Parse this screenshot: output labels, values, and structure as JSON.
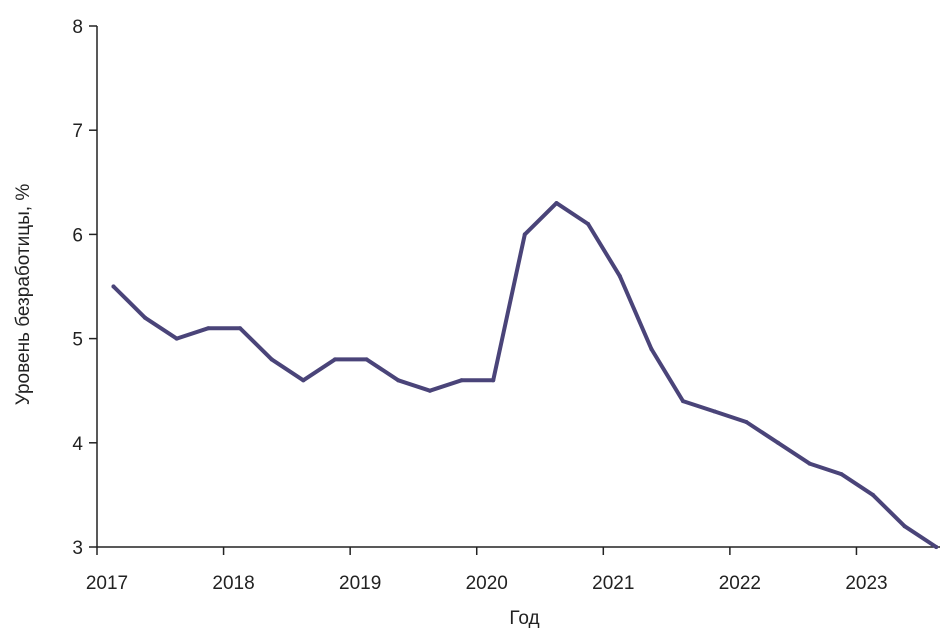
{
  "chart_data": {
    "type": "line",
    "title": "",
    "xlabel": "Год",
    "ylabel": "Уровень безработицы, %",
    "xlim": [
      2017,
      2023.66
    ],
    "ylim": [
      3,
      8
    ],
    "x_ticks": [
      2017,
      2018,
      2019,
      2020,
      2021,
      2022,
      2023
    ],
    "x_tick_labels": [
      "2017",
      "2018",
      "2019",
      "2020",
      "2021",
      "2022",
      "2023"
    ],
    "y_ticks": [
      3,
      4,
      5,
      6,
      7,
      8
    ],
    "y_tick_labels": [
      "3",
      "4",
      "5",
      "6",
      "7",
      "8"
    ],
    "grid": false,
    "legend": "none",
    "series": [
      {
        "color": "#4a4479",
        "x": [
          2017.13,
          2017.38,
          2017.63,
          2017.88,
          2018.13,
          2018.38,
          2018.63,
          2018.88,
          2019.13,
          2019.38,
          2019.63,
          2019.88,
          2020.13,
          2020.38,
          2020.63,
          2020.88,
          2021.13,
          2021.38,
          2021.63,
          2021.88,
          2022.13,
          2022.38,
          2022.63,
          2022.88,
          2023.13,
          2023.38,
          2023.63
        ],
        "y": [
          5.5,
          5.2,
          5.0,
          5.1,
          5.1,
          4.8,
          4.6,
          4.8,
          4.8,
          4.6,
          4.5,
          4.6,
          4.6,
          6.0,
          6.3,
          6.1,
          5.6,
          4.9,
          4.4,
          4.3,
          4.2,
          4.0,
          3.8,
          3.7,
          3.5,
          3.2,
          3.0
        ]
      }
    ]
  }
}
